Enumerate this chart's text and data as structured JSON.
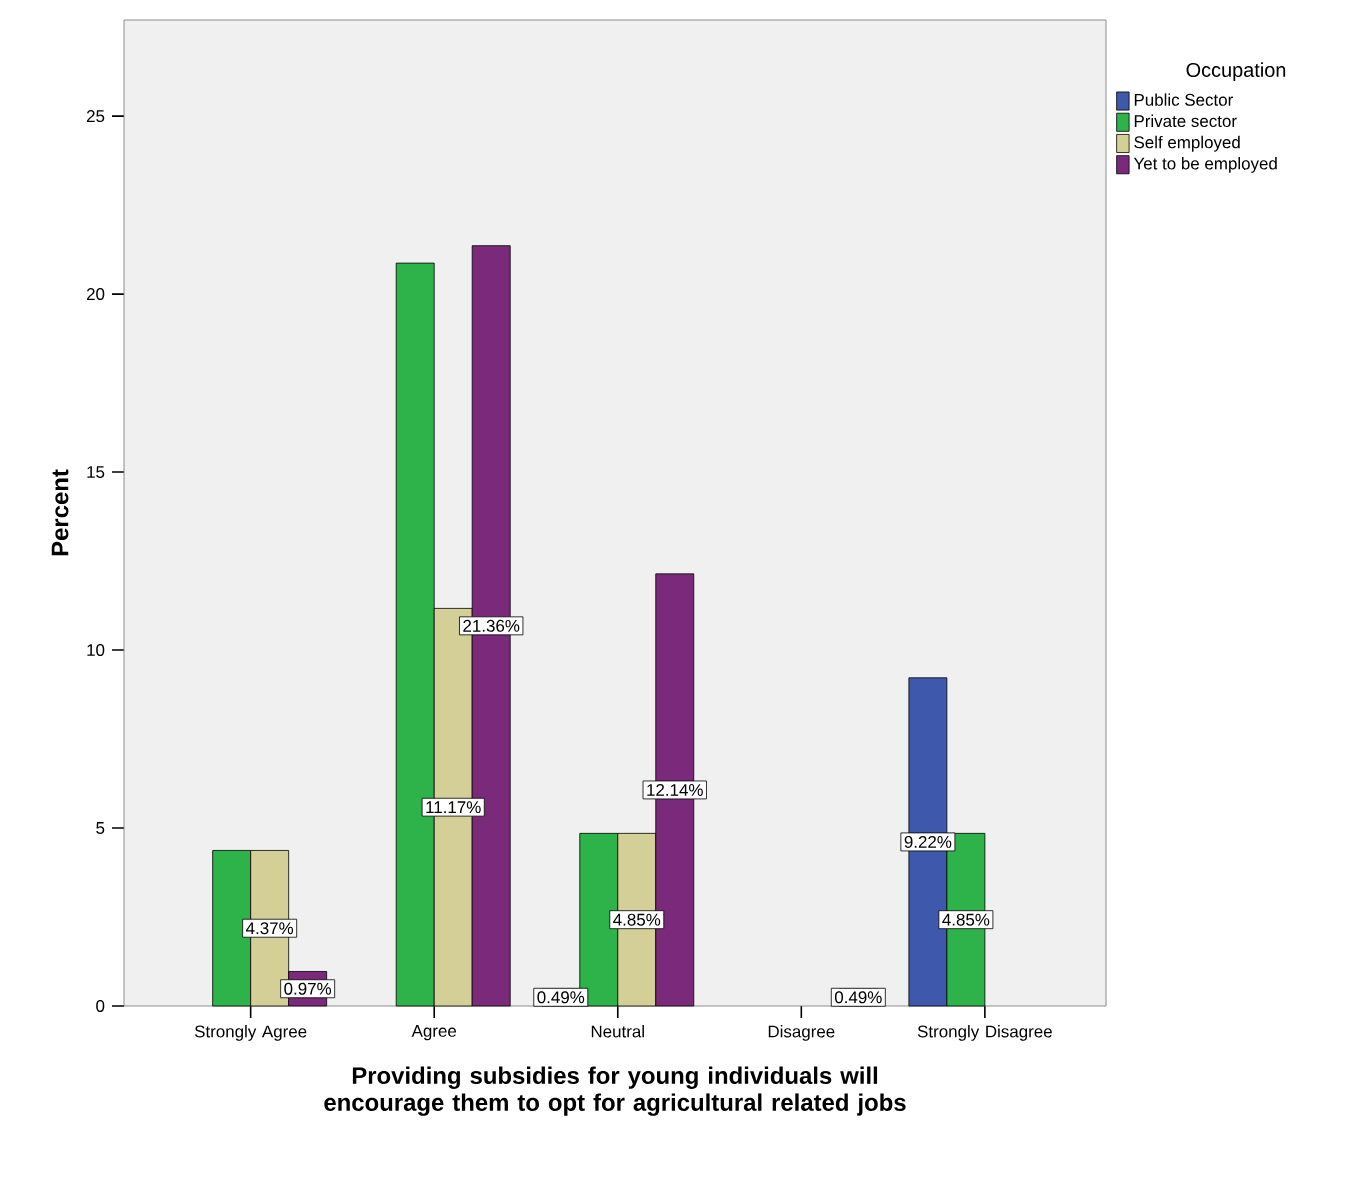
{
  "chart_data": {
    "type": "bar",
    "xlabel": "Providing subsidies for young individuals will encourage them to opt for agricultural related jobs",
    "ylabel": "Percent",
    "legend_title": "Occupation",
    "categories": [
      "Strongly Agree",
      "Agree",
      "Neutral",
      "Disagree",
      "Strongly Disagree"
    ],
    "series": [
      {
        "name": "Public Sector",
        "color": "#3e58ac",
        "values": [
          null,
          null,
          0.49,
          null,
          9.22
        ],
        "value_labels": [
          null,
          null,
          "0.49%",
          null,
          "9.22%"
        ]
      },
      {
        "name": "Private sector",
        "color": "#2db34a",
        "values": [
          4.37,
          20.87,
          4.85,
          null,
          4.85
        ],
        "value_labels": [
          null,
          null,
          null,
          null,
          "4.85%"
        ]
      },
      {
        "name": "Self employed",
        "color": "#d4cf97",
        "values": [
          4.37,
          11.17,
          4.85,
          null,
          null
        ],
        "value_labels": [
          "4.37%",
          "11.17%",
          "4.85%",
          null,
          null
        ]
      },
      {
        "name": "Yet to be employed",
        "color": "#7b2a7b",
        "values": [
          0.97,
          21.36,
          12.14,
          0.49,
          null
        ],
        "value_labels": [
          "0.97%",
          "21.36%",
          "12.14%",
          "0.49%",
          null
        ]
      }
    ],
    "ylim": [
      0,
      27.7
    ],
    "yticks": [
      0,
      5,
      10,
      15,
      20,
      25
    ],
    "legend": "right"
  }
}
